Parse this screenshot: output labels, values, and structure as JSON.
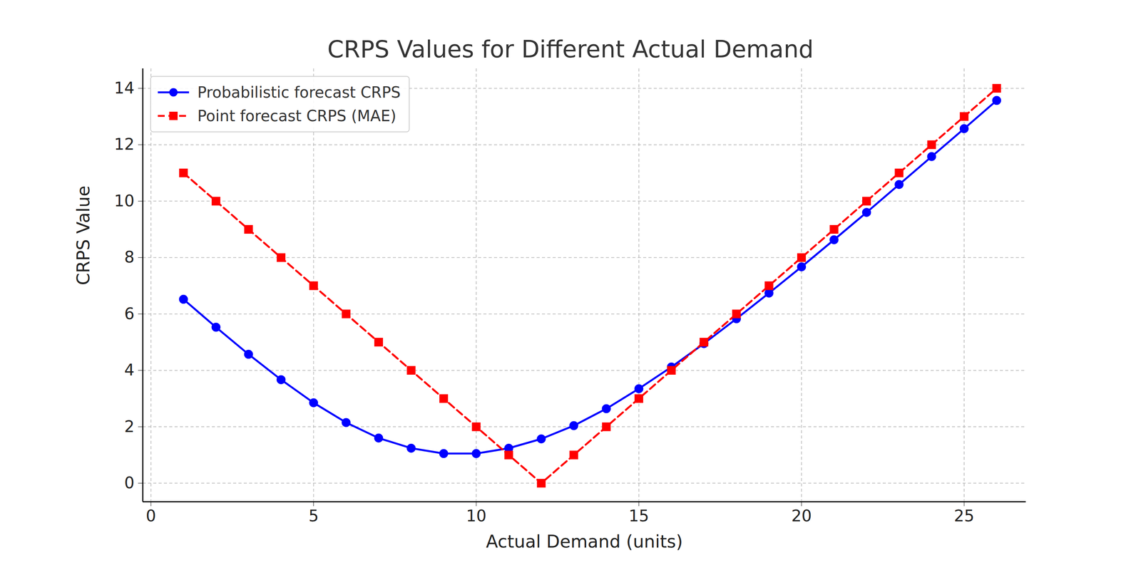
{
  "chart_data": {
    "type": "line",
    "title": "CRPS Values for Different Actual Demand",
    "x_label": "Actual Demand (units)",
    "y_label": "CRPS Value",
    "x": [
      1,
      2,
      3,
      4,
      5,
      6,
      7,
      8,
      9,
      10,
      11,
      12,
      13,
      14,
      15,
      16,
      17,
      18,
      19,
      20,
      21,
      22,
      23,
      24,
      25,
      26
    ],
    "series": [
      {
        "name": "Probabilistic forecast CRPS",
        "color": "#0000ff",
        "marker": "circle",
        "line_style": "solid",
        "values": [
          6.52,
          5.53,
          4.57,
          3.67,
          2.85,
          2.15,
          1.6,
          1.24,
          1.05,
          1.05,
          1.24,
          1.57,
          2.04,
          2.64,
          3.35,
          4.12,
          4.95,
          5.83,
          6.74,
          7.67,
          8.63,
          9.6,
          10.59,
          11.58,
          12.57,
          13.57
        ]
      },
      {
        "name": "Point forecast CRPS (MAE)",
        "color": "#ff0000",
        "marker": "square",
        "line_style": "dashed",
        "values": [
          11,
          10,
          9,
          8,
          7,
          6,
          5,
          4,
          3,
          2,
          1,
          0,
          1,
          2,
          3,
          4,
          5,
          6,
          7,
          8,
          9,
          10,
          11,
          12,
          13,
          14
        ]
      }
    ],
    "xlim": [
      -0.25,
      26.9
    ],
    "ylim": [
      -0.66,
      14.7
    ],
    "xticks": [
      0,
      5,
      10,
      15,
      20,
      25
    ],
    "yticks": [
      0,
      2,
      4,
      6,
      8,
      10,
      12,
      14
    ],
    "grid": true,
    "legend": "upper left"
  }
}
